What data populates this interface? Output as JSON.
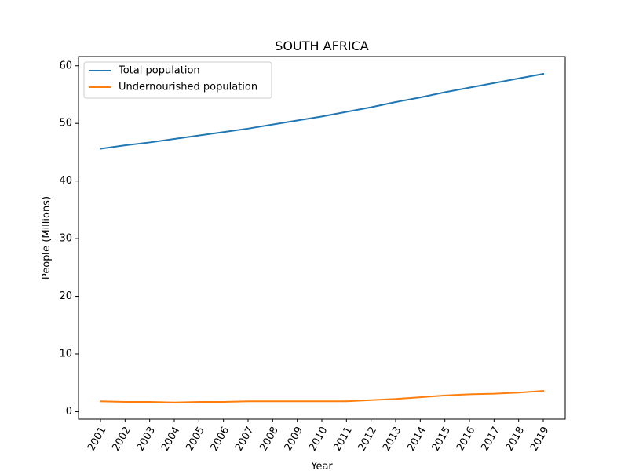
{
  "chart_data": {
    "type": "line",
    "title": "SOUTH AFRICA",
    "xlabel": "Year",
    "ylabel": "People (Millions)",
    "x": [
      "2001",
      "2002",
      "2003",
      "2004",
      "2005",
      "2006",
      "2007",
      "2008",
      "2009",
      "2010",
      "2011",
      "2012",
      "2013",
      "2014",
      "2015",
      "2016",
      "2017",
      "2018",
      "2019"
    ],
    "ylim": [
      -1.3,
      61.6
    ],
    "yticks": [
      0,
      10,
      20,
      30,
      40,
      50,
      60
    ],
    "grid": false,
    "legend_position": "upper-left",
    "series": [
      {
        "name": "Total population",
        "color": "#1f77b4",
        "values": [
          45.6,
          46.2,
          46.7,
          47.3,
          47.9,
          48.5,
          49.1,
          49.8,
          50.5,
          51.2,
          52.0,
          52.8,
          53.7,
          54.5,
          55.4,
          56.2,
          57.0,
          57.8,
          58.6
        ]
      },
      {
        "name": "Undernourished population",
        "color": "#ff7f0e",
        "values": [
          1.8,
          1.7,
          1.7,
          1.6,
          1.7,
          1.7,
          1.8,
          1.8,
          1.8,
          1.8,
          1.8,
          2.0,
          2.2,
          2.5,
          2.8,
          3.0,
          3.1,
          3.3,
          3.6
        ]
      }
    ]
  }
}
